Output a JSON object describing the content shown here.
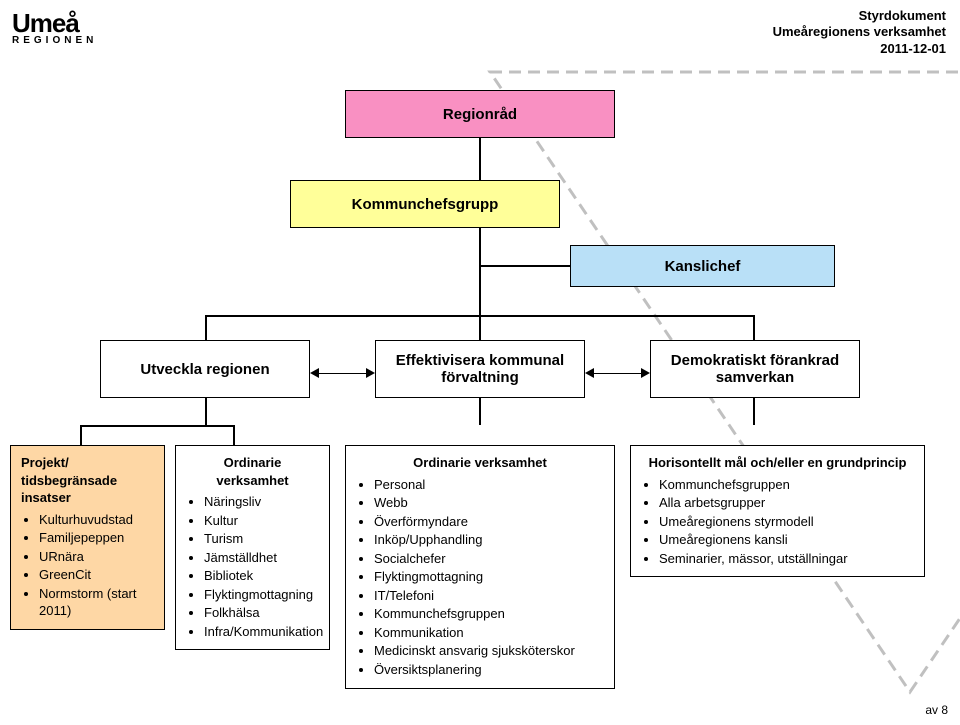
{
  "header": {
    "line1": "Styrdokument",
    "line2": "Umeåregionens verksamhet",
    "line3": "2011-12-01"
  },
  "logo": {
    "city": "Umeå",
    "sub": "REGIONEN"
  },
  "colors": {
    "pink": "#f990c2",
    "yellow": "#ffff99",
    "blue": "#b9e0f7",
    "orange": "#fed7a5",
    "triangle": "#c0c0c0"
  },
  "boxes": {
    "top": {
      "label": "Regionråd"
    },
    "mid": {
      "label": "Kommunchefsgrupp"
    },
    "mid2": {
      "label": "Kanslichef"
    },
    "row": [
      {
        "label": "Utveckla regionen"
      },
      {
        "label": "Effektivisera kommunal förvaltning"
      },
      {
        "label": "Demokratiskt förankrad samverkan"
      }
    ]
  },
  "bottom": [
    {
      "title": "Projekt/ tidsbegränsade insatser",
      "items": [
        "Kulturhuvudstad",
        "Familjepeppen",
        "URnära",
        "GreenCit",
        "Normstorm (start 2011)"
      ]
    },
    {
      "title": "Ordinarie verksamhet",
      "items": [
        "Näringsliv",
        "Kultur",
        "Turism",
        "Jämställdhet",
        "Bibliotek",
        "Flyktingmottagning",
        "Folkhälsa",
        "Infra/Kommunikation"
      ]
    },
    {
      "title": "Ordinarie verksamhet",
      "items": [
        "Personal",
        "Webb",
        "Överförmyndare",
        "Inköp/Upphandling",
        "Socialchefer",
        "Flyktingmottagning",
        "IT/Telefoni",
        "Kommunchefsgruppen",
        "Kommunikation",
        "Medicinskt ansvarig sjuksköterskor",
        "Översiktsplanering"
      ]
    },
    {
      "title": "Horisontellt mål och/eller en grundprincip",
      "items": [
        "Kommunchefsgruppen",
        "Alla arbetsgrupper",
        "Umeåregionens styrmodell",
        "Umeåregionens kansli",
        "Seminarier, mässor, utställningar"
      ]
    }
  ],
  "footer": {
    "page": "av 8"
  }
}
